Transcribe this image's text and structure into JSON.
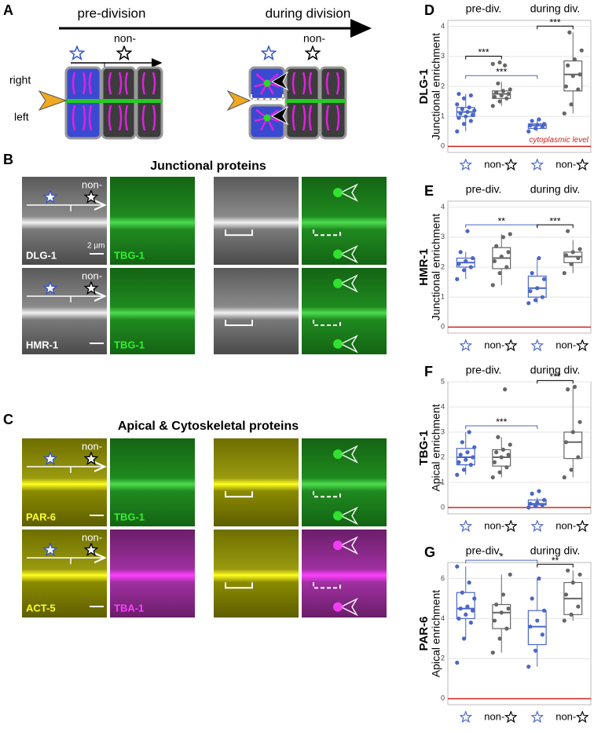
{
  "schematic": {
    "label": "A",
    "pre": "pre-division",
    "during": "during division",
    "non": [
      "non-",
      "non-"
    ],
    "right": "right",
    "left": "left"
  },
  "micrographs": [
    {
      "label": "B",
      "title": "Junctional proteins",
      "rows": [
        {
          "non": "non-",
          "stain1": "DLG-1",
          "scale": "2 µm",
          "stain2": "TBG-1"
        },
        {
          "non": "non-",
          "stain1": "HMR-1",
          "stain2": "TBG-1"
        }
      ]
    },
    {
      "label": "C",
      "title": "Apical & Cytoskeletal proteins",
      "rows": [
        {
          "non": "non-",
          "stain1": "PAR-6",
          "stain2": "TBG-1"
        },
        {
          "non": "non-",
          "stain1": "ACT-5",
          "stain2": "TBA-1"
        }
      ]
    }
  ],
  "chart_data": [
    {
      "type": "box",
      "label": "D",
      "title": "DLG-1",
      "ylabel": "Junctional enrichment",
      "groups": [
        "pre-div.",
        "during div."
      ],
      "categories": [
        null,
        "non-",
        null,
        "non-"
      ],
      "colors": [
        "#4a66c8",
        "#666666",
        "#4a66c8",
        "#666666"
      ],
      "ylim": [
        -0.2,
        4.2
      ],
      "yticks": [
        0,
        1,
        2,
        3,
        4
      ],
      "grid": true,
      "reference": {
        "value": 0,
        "color": "#d42020",
        "label": "cytoplasmic level"
      },
      "boxes": [
        {
          "whislo": 0.5,
          "q1": 1.0,
          "med": 1.15,
          "q3": 1.3,
          "whishi": 1.75,
          "points": [
            0.5,
            0.75,
            0.85,
            0.95,
            1.0,
            1.05,
            1.1,
            1.15,
            1.2,
            1.25,
            1.3,
            1.4,
            1.6,
            1.7,
            1.75
          ]
        },
        {
          "whislo": 1.35,
          "q1": 1.6,
          "med": 1.75,
          "q3": 1.85,
          "whishi": 2.15,
          "points": [
            1.35,
            1.5,
            1.6,
            1.65,
            1.7,
            1.75,
            1.8,
            1.85,
            1.9,
            2.1,
            2.7,
            2.75,
            2.8
          ]
        },
        {
          "whislo": 0.5,
          "q1": 0.6,
          "med": 0.7,
          "q3": 0.75,
          "whishi": 0.9,
          "points": [
            0.5,
            0.6,
            0.65,
            0.7,
            0.72,
            0.75,
            0.85,
            0.9
          ]
        },
        {
          "whislo": 1.1,
          "q1": 1.85,
          "med": 2.4,
          "q3": 2.85,
          "whishi": 3.8,
          "points": [
            1.1,
            1.4,
            1.9,
            2.0,
            2.35,
            2.4,
            2.7,
            2.9,
            3.2,
            3.8
          ]
        }
      ],
      "annotations": [
        {
          "label": "***",
          "groups": [
            0,
            1
          ],
          "color": "#000000"
        },
        {
          "label": "***",
          "groups": [
            0,
            2
          ],
          "color": "#4a66c8"
        },
        {
          "label": "***",
          "groups": [
            2,
            3
          ],
          "color": "#000000"
        }
      ]
    },
    {
      "type": "box",
      "label": "E",
      "title": "HMR-1",
      "ylabel": "Junctional enrichment",
      "groups": [
        "pre-div.",
        "during div."
      ],
      "categories": [
        null,
        "non-",
        null,
        "non-"
      ],
      "colors": [
        "#4a66c8",
        "#666666",
        "#4a66c8",
        "#666666"
      ],
      "ylim": [
        -0.2,
        4.2
      ],
      "yticks": [
        0,
        1,
        2,
        3,
        4
      ],
      "grid": true,
      "reference": {
        "value": 0,
        "color": "#d42020"
      },
      "boxes": [
        {
          "whislo": 1.6,
          "q1": 2.0,
          "med": 2.15,
          "q3": 2.3,
          "whishi": 2.5,
          "points": [
            1.6,
            1.9,
            2.0,
            2.1,
            2.2,
            2.3,
            2.5,
            3.2
          ]
        },
        {
          "whislo": 1.4,
          "q1": 1.95,
          "med": 2.3,
          "q3": 2.65,
          "whishi": 3.1,
          "points": [
            1.4,
            1.8,
            2.0,
            2.2,
            2.35,
            2.5,
            2.7,
            3.0,
            3.1
          ]
        },
        {
          "whislo": 0.8,
          "q1": 1.0,
          "med": 1.3,
          "q3": 1.7,
          "whishi": 2.3,
          "points": [
            0.8,
            0.9,
            1.0,
            1.2,
            1.3,
            1.6,
            1.8,
            2.3
          ]
        },
        {
          "whislo": 1.8,
          "q1": 2.15,
          "med": 2.35,
          "q3": 2.5,
          "whishi": 2.9,
          "points": [
            1.8,
            2.1,
            2.3,
            2.4,
            2.5,
            2.6,
            3.2
          ]
        }
      ],
      "annotations": [
        {
          "label": "**",
          "groups": [
            0,
            2
          ],
          "color": "#4a66c8"
        },
        {
          "label": "***",
          "groups": [
            2,
            3
          ],
          "color": "#000000"
        }
      ]
    },
    {
      "type": "box",
      "label": "F",
      "title": "TBG-1",
      "ylabel": "Apical enrichment",
      "groups": [
        "pre-div.",
        "during div."
      ],
      "categories": [
        null,
        "non-",
        null,
        "non-"
      ],
      "colors": [
        "#4a66c8",
        "#666666",
        "#4a66c8",
        "#666666"
      ],
      "ylim": [
        -0.25,
        5
      ],
      "yticks": [
        0,
        1,
        2,
        3,
        4,
        5
      ],
      "grid": true,
      "reference": {
        "value": 0,
        "color": "#d42020"
      },
      "boxes": [
        {
          "whislo": 1.3,
          "q1": 1.7,
          "med": 2.0,
          "q3": 2.35,
          "whishi": 3.0,
          "points": [
            1.3,
            1.5,
            1.7,
            1.8,
            1.9,
            2.0,
            2.1,
            2.2,
            2.4,
            2.6,
            3.0
          ]
        },
        {
          "whislo": 1.2,
          "q1": 1.65,
          "med": 2.0,
          "q3": 2.3,
          "whishi": 2.8,
          "points": [
            1.2,
            1.4,
            1.6,
            1.8,
            2.0,
            2.1,
            2.2,
            2.3,
            2.5,
            2.8,
            4.7
          ]
        },
        {
          "whislo": 0.0,
          "q1": 0.1,
          "med": 0.15,
          "q3": 0.3,
          "whishi": 0.4,
          "points": [
            0.0,
            0.05,
            0.1,
            0.15,
            0.2,
            0.3,
            0.55,
            0.65
          ]
        },
        {
          "whislo": 1.2,
          "q1": 1.95,
          "med": 2.6,
          "q3": 3.0,
          "whishi": 4.8,
          "points": [
            1.2,
            1.5,
            2.0,
            2.6,
            3.0,
            3.4,
            4.7,
            4.8
          ]
        }
      ],
      "annotations": [
        {
          "label": "***",
          "groups": [
            0,
            2
          ],
          "color": "#4a66c8"
        },
        {
          "label": "***",
          "groups": [
            2,
            3
          ],
          "color": "#000000"
        }
      ]
    },
    {
      "type": "box",
      "label": "G",
      "title": "PAR-6",
      "ylabel": "Apical enrichment",
      "groups": [
        "pre-div.",
        "during div."
      ],
      "categories": [
        null,
        "non-",
        null,
        "non-"
      ],
      "colors": [
        "#4a66c8",
        "#666666",
        "#4a66c8",
        "#666666"
      ],
      "ylim": [
        -0.3,
        6.8
      ],
      "yticks": [
        0,
        2,
        4,
        6
      ],
      "grid": true,
      "reference": {
        "value": 0,
        "color": "#d42020"
      },
      "boxes": [
        {
          "whislo": 3.0,
          "q1": 4.0,
          "med": 4.5,
          "q3": 5.3,
          "whishi": 6.6,
          "points": [
            1.8,
            3.0,
            3.8,
            4.0,
            4.2,
            4.4,
            4.5,
            4.6,
            5.0,
            5.3,
            5.8,
            6.6
          ]
        },
        {
          "whislo": 2.3,
          "q1": 3.5,
          "med": 4.3,
          "q3": 4.7,
          "whishi": 6.2,
          "points": [
            2.3,
            3.0,
            3.5,
            3.9,
            4.3,
            4.5,
            4.7,
            5.2,
            6.2
          ]
        },
        {
          "whislo": 1.6,
          "q1": 2.7,
          "med": 3.6,
          "q3": 4.4,
          "whishi": 6.0,
          "points": [
            1.6,
            2.4,
            3.2,
            3.6,
            3.9,
            4.4,
            5.0,
            6.0
          ]
        },
        {
          "whislo": 3.9,
          "q1": 4.2,
          "med": 5.0,
          "q3": 5.8,
          "whishi": 6.4,
          "points": [
            3.9,
            4.2,
            4.6,
            5.2,
            5.8,
            6.2,
            6.4
          ]
        }
      ],
      "annotations": [
        {
          "label": "*",
          "groups": [
            0,
            2
          ],
          "color": "#4a66c8"
        },
        {
          "label": "**",
          "groups": [
            2,
            3
          ],
          "color": "#000000"
        }
      ]
    }
  ]
}
